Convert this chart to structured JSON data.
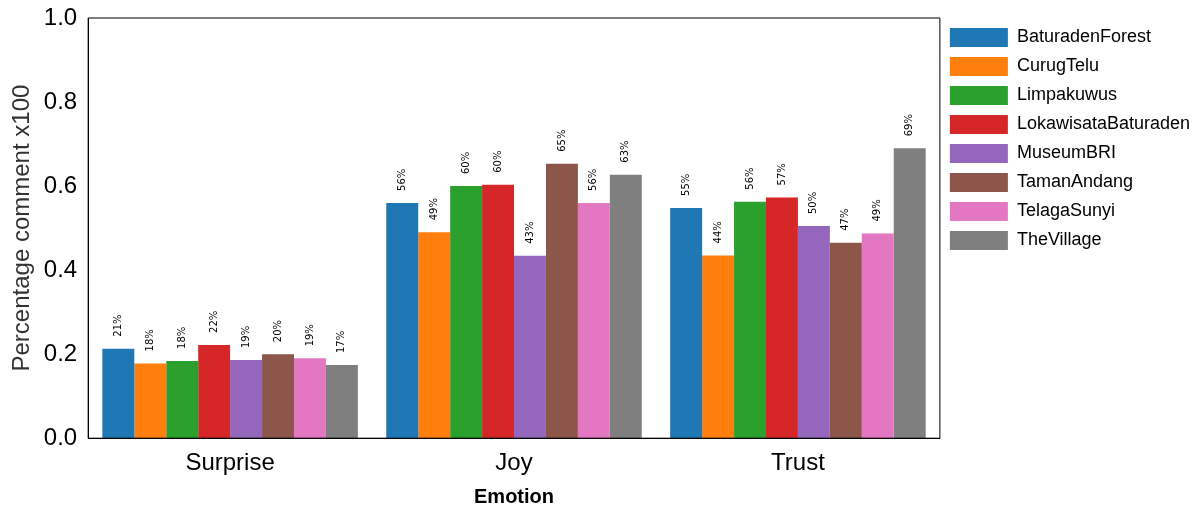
{
  "chart_data": {
    "type": "bar",
    "xlabel": "Emotion",
    "ylabel": "Percentage comment x100",
    "categories": [
      "Surprise",
      "Joy",
      "Trust"
    ],
    "ylim": [
      0,
      1
    ],
    "yticks": [
      {
        "value": 0,
        "label": "0.0"
      },
      {
        "value": 0.2,
        "label": "0.2"
      },
      {
        "value": 0.4,
        "label": "0.4"
      },
      {
        "value": 0.6,
        "label": "0.6"
      },
      {
        "value": 0.8,
        "label": "0.8"
      },
      {
        "value": 1,
        "label": "1.0"
      }
    ],
    "grid": false,
    "legend": "right",
    "series": [
      {
        "name": "BaturadenForest",
        "color": "#1f77b4",
        "values": [
          0.213,
          0.56,
          0.548
        ],
        "value_labels": [
          "21%",
          "56%",
          "55%"
        ]
      },
      {
        "name": "CurugTelu",
        "color": "#ff7f0e",
        "values": [
          0.178,
          0.49,
          0.435
        ],
        "value_labels": [
          "18%",
          "49%",
          "44%"
        ]
      },
      {
        "name": "Limpakuwus",
        "color": "#2ca02c",
        "values": [
          0.184,
          0.6,
          0.563
        ],
        "value_labels": [
          "18%",
          "60%",
          "56%"
        ]
      },
      {
        "name": "LokawisataBaturaden",
        "color": "#d62728",
        "values": [
          0.222,
          0.603,
          0.573
        ],
        "value_labels": [
          "22%",
          "60%",
          "57%"
        ]
      },
      {
        "name": "MuseumBRI",
        "color": "#9467bd",
        "values": [
          0.186,
          0.434,
          0.505
        ],
        "value_labels": [
          "19%",
          "43%",
          "50%"
        ]
      },
      {
        "name": "TamanAndang",
        "color": "#8c564b",
        "values": [
          0.2,
          0.653,
          0.465
        ],
        "value_labels": [
          "20%",
          "65%",
          "47%"
        ]
      },
      {
        "name": "TelagaSunyi",
        "color": "#e377c2",
        "values": [
          0.19,
          0.56,
          0.487
        ],
        "value_labels": [
          "19%",
          "56%",
          "49%"
        ]
      },
      {
        "name": "TheVillage",
        "color": "#7f7f7f",
        "values": [
          0.174,
          0.627,
          0.69
        ],
        "value_labels": [
          "17%",
          "63%",
          "69%"
        ]
      }
    ]
  }
}
